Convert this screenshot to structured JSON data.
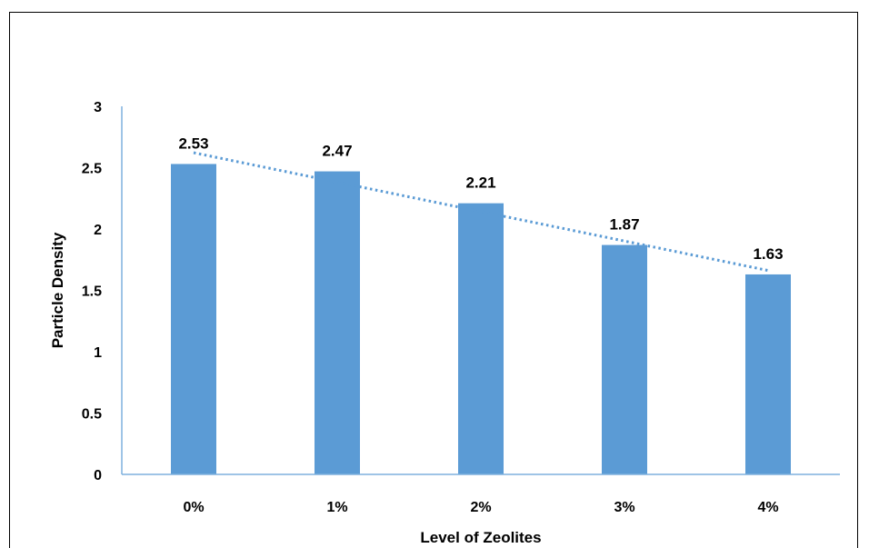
{
  "chart_data": {
    "type": "bar",
    "title": "",
    "categories": [
      "0%",
      "1%",
      "2%",
      "3%",
      "4%"
    ],
    "values": [
      2.53,
      2.47,
      2.21,
      1.87,
      1.63
    ],
    "data_labels": [
      "2.53",
      "2.47",
      "2.21",
      "1.87",
      "1.63"
    ],
    "xlabel": "Level of Zeolites",
    "ylabel": "Particle Density",
    "ylim": [
      0,
      3
    ],
    "yticks": [
      "0",
      "0.5",
      "1",
      "1.5",
      "2",
      "2.5",
      "3"
    ],
    "trendline": {
      "type": "linear",
      "style": "dotted"
    },
    "grid": false,
    "legend": "none",
    "colors": {
      "bar": "#5B9BD5",
      "trendline": "#5B9BD5",
      "axis": "#7EB1DD"
    }
  }
}
